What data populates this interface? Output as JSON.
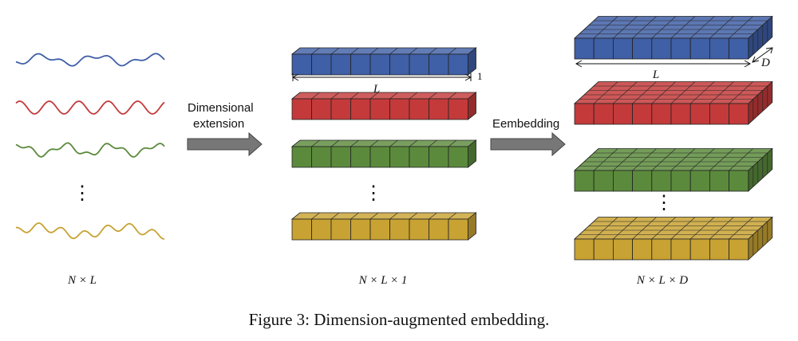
{
  "arrows": {
    "first_label_line1": "Dimensional",
    "first_label_line2": "extension",
    "second_label": "Eembedding"
  },
  "dimension_labels": {
    "signals": "N × L",
    "sequences": "N × L × 1",
    "embeddings": "N × L × D",
    "length": "L",
    "one": "1",
    "depth": "D"
  },
  "caption": "Figure 3: Dimension-augmented embedding.",
  "colors": {
    "blue": "#3f5fa6",
    "red": "#c43a3a",
    "green": "#5b8a3c",
    "gold": "#c8a232",
    "arrow": "#777777"
  },
  "ellipsis": "⋮"
}
